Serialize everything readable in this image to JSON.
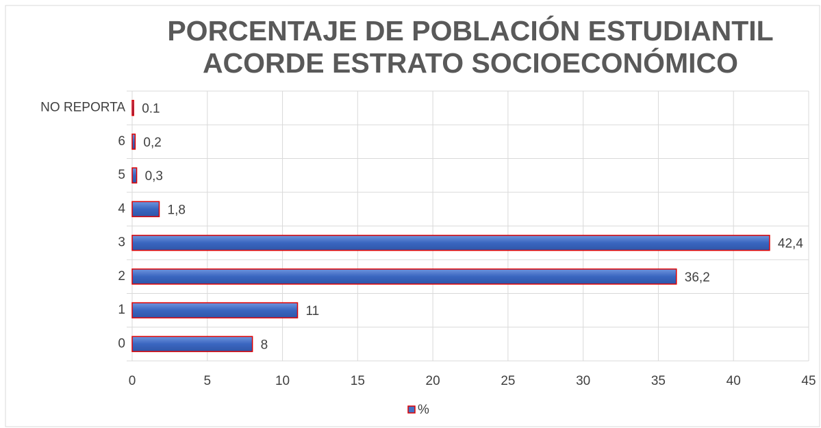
{
  "chart_data": {
    "type": "hbar",
    "title": [
      "PORCENTAJE DE POBLACIÓN ESTUDIANTIL",
      "ACORDE ESTRATO SOCIOECONÓMICO"
    ],
    "categories": [
      "0",
      "1",
      "2",
      "3",
      "4",
      "5",
      "6",
      "NO REPORTA"
    ],
    "series": [
      {
        "name": "%",
        "color": "#4472c4",
        "edge": "#e00000",
        "values": [
          8,
          11,
          36.2,
          42.4,
          1.8,
          0.3,
          0.2,
          0.1
        ],
        "value_labels": [
          "8",
          "11",
          "36,2",
          "42,4",
          "1,8",
          "0,3",
          "0,2",
          "0.1"
        ]
      }
    ],
    "xlim": [
      0,
      45
    ],
    "xticks": [
      0,
      5,
      10,
      15,
      20,
      25,
      30,
      35,
      40,
      45
    ],
    "grid": true,
    "legend": "bottom"
  }
}
